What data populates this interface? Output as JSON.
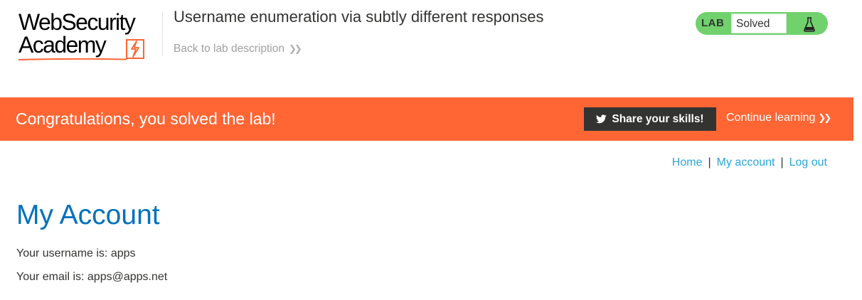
{
  "header": {
    "logo": {
      "line1": "WebSecurity",
      "line2": "Academy"
    },
    "lab_title": "Username enumeration via subtly different responses",
    "back_link": "Back to lab description",
    "lab_status": {
      "badge": "LAB",
      "status": "Solved"
    }
  },
  "banner": {
    "message": "Congratulations, you solved the lab!",
    "share_label": "Share your skills!",
    "continue_label": "Continue learning"
  },
  "nav": {
    "home": "Home",
    "separator": "|",
    "my_account": "My account",
    "log_out": "Log out"
  },
  "main": {
    "title": "My Account",
    "username_line": "Your username is: apps",
    "email_line": "Your email is: apps@apps.net"
  },
  "colors": {
    "banner": "#ff6633",
    "lab_green": "#70d16d",
    "title_blue": "#0071bc",
    "link_blue": "#29a6d8",
    "share_bg": "#333332"
  },
  "icons": {
    "logo_bolt": "lightning-bolt-icon",
    "flask": "flask-icon",
    "twitter": "twitter-icon",
    "chevrons": "double-chevron-right-icon"
  }
}
